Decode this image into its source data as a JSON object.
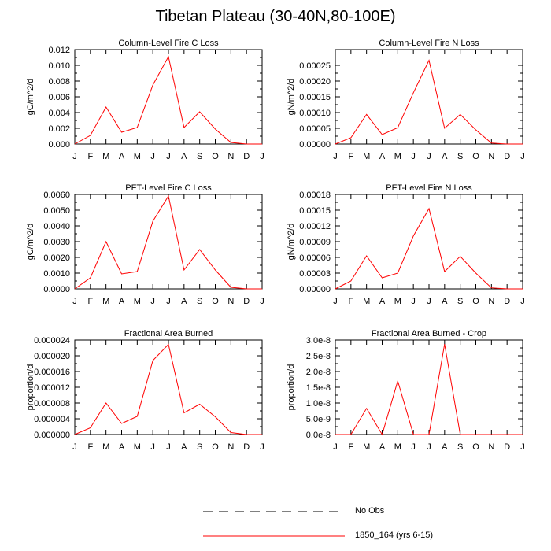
{
  "title": "Tibetan Plateau (30-40N,80-100E)",
  "colors": {
    "model_line": "#ff0000",
    "obs_line": "#000000",
    "axes": "#000000"
  },
  "chart_data": [
    {
      "type": "line",
      "title": "Column-Level Fire C Loss",
      "ylabel": "gC/m^2/d",
      "x": [
        "J",
        "F",
        "M",
        "A",
        "M",
        "J",
        "J",
        "A",
        "S",
        "O",
        "N",
        "D",
        "J"
      ],
      "ylim": [
        0,
        0.012
      ],
      "yticks": [
        0.0,
        0.002,
        0.004,
        0.006,
        0.008,
        0.01,
        0.012
      ],
      "ytick_labels": [
        "0.000",
        "0.002",
        "0.004",
        "0.006",
        "0.008",
        "0.010",
        "0.012"
      ],
      "series": [
        {
          "name": "1850_164 (yrs 6-15)",
          "values": [
            0.0,
            0.0011,
            0.0047,
            0.0015,
            0.0021,
            0.0075,
            0.0111,
            0.0021,
            0.0041,
            0.0019,
            0.0002,
            0.0,
            0.0
          ]
        }
      ]
    },
    {
      "type": "line",
      "title": "Column-Level Fire N Loss",
      "ylabel": "gN/m^2/d",
      "x": [
        "J",
        "F",
        "M",
        "A",
        "M",
        "J",
        "J",
        "A",
        "S",
        "O",
        "N",
        "D",
        "J"
      ],
      "ylim": [
        0,
        0.0003
      ],
      "yticks": [
        0.0,
        5e-05,
        0.0001,
        0.00015,
        0.0002,
        0.00025
      ],
      "ytick_labels": [
        "0.00000",
        "0.00005",
        "0.00010",
        "0.00015",
        "0.00020",
        "0.00025"
      ],
      "series": [
        {
          "name": "1850_164 (yrs 6-15)",
          "values": [
            0.0,
            2e-05,
            9.4e-05,
            3e-05,
            5.2e-05,
            0.000163,
            0.000266,
            5e-05,
            9.4e-05,
            4.5e-05,
            3e-06,
            0.0,
            0.0
          ]
        }
      ]
    },
    {
      "type": "line",
      "title": "PFT-Level Fire C Loss",
      "ylabel": "gC/m^2/d",
      "x": [
        "J",
        "F",
        "M",
        "A",
        "M",
        "J",
        "J",
        "A",
        "S",
        "O",
        "N",
        "D",
        "J"
      ],
      "ylim": [
        0,
        0.006
      ],
      "yticks": [
        0.0,
        0.001,
        0.002,
        0.003,
        0.004,
        0.005,
        0.006
      ],
      "ytick_labels": [
        "0.0000",
        "0.0010",
        "0.0020",
        "0.0030",
        "0.0040",
        "0.0050",
        "0.0060"
      ],
      "series": [
        {
          "name": "1850_164 (yrs 6-15)",
          "values": [
            0.0,
            0.0007,
            0.003,
            0.00095,
            0.0011,
            0.0043,
            0.0059,
            0.0012,
            0.0025,
            0.0012,
            0.0001,
            0.0,
            0.0
          ]
        }
      ]
    },
    {
      "type": "line",
      "title": "PFT-Level Fire N Loss",
      "ylabel": "gN/m^2/d",
      "x": [
        "J",
        "F",
        "M",
        "A",
        "M",
        "J",
        "J",
        "A",
        "S",
        "O",
        "N",
        "D",
        "J"
      ],
      "ylim": [
        0,
        0.00018
      ],
      "yticks": [
        0.0,
        3e-05,
        6e-05,
        9e-05,
        0.00012,
        0.00015,
        0.00018
      ],
      "ytick_labels": [
        "0.00000",
        "0.00003",
        "0.00006",
        "0.00009",
        "0.00012",
        "0.00015",
        "0.00018"
      ],
      "series": [
        {
          "name": "1850_164 (yrs 6-15)",
          "values": [
            0.0,
            1.5e-05,
            6.3e-05,
            2.1e-05,
            3e-05,
            0.000101,
            0.000153,
            3.3e-05,
            6.2e-05,
            3e-05,
            2e-06,
            0.0,
            0.0
          ]
        }
      ]
    },
    {
      "type": "line",
      "title": "Fractional Area Burned",
      "ylabel": "proportion/d",
      "x": [
        "J",
        "F",
        "M",
        "A",
        "M",
        "J",
        "J",
        "A",
        "S",
        "O",
        "N",
        "D",
        "J"
      ],
      "ylim": [
        0,
        2.4e-05
      ],
      "yticks": [
        0.0,
        4e-06,
        8e-06,
        1.2e-05,
        1.6e-05,
        2e-05,
        2.4e-05
      ],
      "ytick_labels": [
        "0.000000",
        "0.000004",
        "0.000008",
        "0.000012",
        "0.000016",
        "0.000020",
        "0.000024"
      ],
      "series": [
        {
          "name": "1850_164 (yrs 6-15)",
          "values": [
            0.0,
            1.7e-06,
            8e-06,
            2.8e-06,
            4.6e-06,
            1.88e-05,
            2.29e-05,
            5.5e-06,
            7.7e-06,
            4.5e-06,
            5e-07,
            0.0,
            0.0
          ]
        }
      ]
    },
    {
      "type": "line",
      "title": "Fractional Area Burned - Crop",
      "ylabel": "proportion/d",
      "x": [
        "J",
        "F",
        "M",
        "A",
        "M",
        "J",
        "J",
        "A",
        "S",
        "O",
        "N",
        "D",
        "J"
      ],
      "ylim": [
        0,
        3e-08
      ],
      "yticks": [
        0.0,
        5e-09,
        1e-08,
        1.5e-08,
        2e-08,
        2.5e-08,
        3e-08
      ],
      "ytick_labels": [
        "0.0e-8",
        "5.0e-9",
        "1.0e-8",
        "1.5e-8",
        "2.0e-8",
        "2.5e-8",
        "3.0e-8"
      ],
      "series": [
        {
          "name": "1850_164 (yrs 6-15)",
          "values": [
            0.0,
            0.0,
            8.3e-09,
            0.0,
            1.7e-08,
            0.0,
            0.0,
            2.87e-08,
            0.0,
            0.0,
            0.0,
            0.0,
            0.0
          ]
        }
      ]
    }
  ],
  "legend": [
    {
      "label": "No Obs",
      "style": "dashed"
    },
    {
      "label": "1850_164 (yrs 6-15)",
      "style": "solid"
    }
  ]
}
